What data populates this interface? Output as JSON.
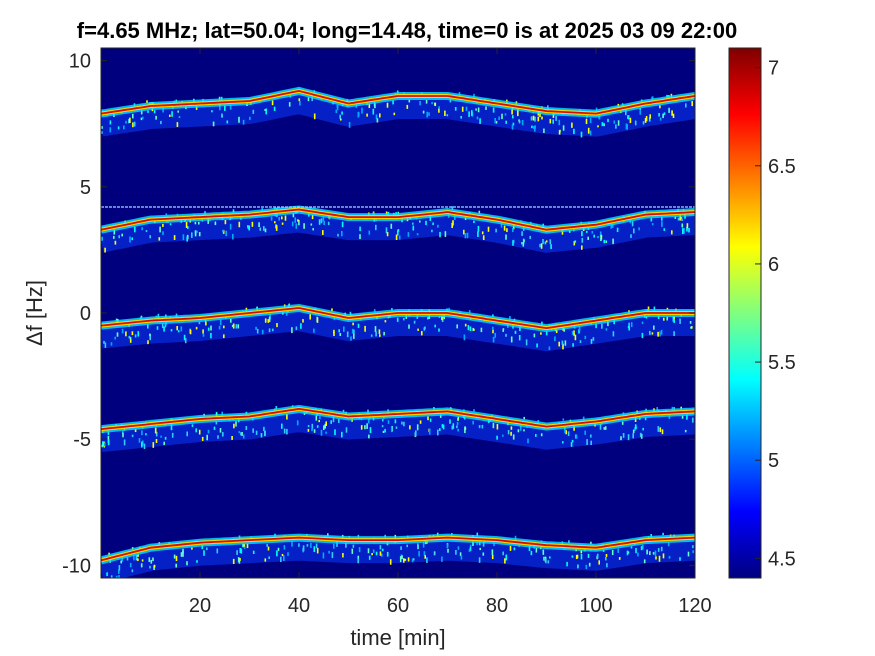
{
  "chart_data": {
    "type": "heatmap",
    "title": "f=4.65 MHz;  lat=50.04; long=14.48, time=0 is at 2025 03 09 22:00",
    "xlabel": "time [min]",
    "ylabel": "Δf [Hz]",
    "xlim": [
      0,
      120
    ],
    "ylim": [
      -10.5,
      10.5
    ],
    "xticks": [
      "20",
      "40",
      "60",
      "80",
      "100",
      "120"
    ],
    "yticks": [
      "-10",
      "-5",
      "0",
      "5",
      "10"
    ],
    "colorbar": {
      "limits": [
        4.4,
        7.1
      ],
      "ticks": [
        "4.5",
        "5",
        "5.5",
        "6",
        "6.5",
        "7"
      ],
      "colormap": "jet"
    },
    "background_color": "#00007f",
    "reference_line_hz": 4.2,
    "traces": [
      {
        "offset_hz": 8,
        "time_min": [
          0,
          10,
          20,
          30,
          40,
          50,
          60,
          70,
          80,
          90,
          100,
          110,
          120
        ],
        "delta_f_hz": [
          7.9,
          8.2,
          8.3,
          8.4,
          8.8,
          8.3,
          8.6,
          8.6,
          8.3,
          8.0,
          7.9,
          8.3,
          8.6
        ]
      },
      {
        "offset_hz": 4,
        "time_min": [
          0,
          10,
          20,
          30,
          40,
          50,
          60,
          70,
          80,
          90,
          100,
          110,
          120
        ],
        "delta_f_hz": [
          3.3,
          3.7,
          3.8,
          3.9,
          4.1,
          3.8,
          3.8,
          4.0,
          3.7,
          3.3,
          3.5,
          3.9,
          4.0
        ]
      },
      {
        "offset_hz": 0,
        "time_min": [
          0,
          10,
          20,
          30,
          40,
          50,
          60,
          70,
          80,
          90,
          100,
          110,
          120
        ],
        "delta_f_hz": [
          -0.5,
          -0.3,
          -0.2,
          0.0,
          0.2,
          -0.2,
          0.0,
          0.0,
          -0.3,
          -0.6,
          -0.3,
          0.0,
          0.0
        ]
      },
      {
        "offset_hz": -4,
        "time_min": [
          0,
          10,
          20,
          30,
          40,
          50,
          60,
          70,
          80,
          90,
          100,
          110,
          120
        ],
        "delta_f_hz": [
          -4.6,
          -4.4,
          -4.2,
          -4.1,
          -3.8,
          -4.1,
          -4.0,
          -3.9,
          -4.2,
          -4.5,
          -4.3,
          -4.0,
          -3.9
        ]
      },
      {
        "offset_hz": -9,
        "time_min": [
          0,
          10,
          20,
          30,
          40,
          50,
          60,
          70,
          80,
          90,
          100,
          110,
          120
        ],
        "delta_f_hz": [
          -9.8,
          -9.3,
          -9.1,
          -9.0,
          -8.9,
          -9.0,
          -9.0,
          -8.9,
          -9.0,
          -9.2,
          -9.3,
          -9.0,
          -8.9
        ]
      }
    ]
  }
}
